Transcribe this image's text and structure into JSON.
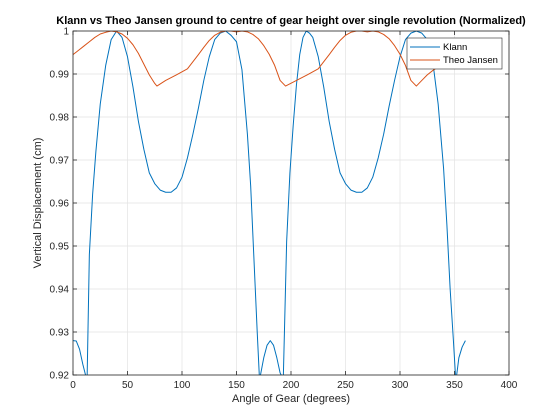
{
  "chart_data": {
    "type": "line",
    "title": "Klann vs Theo Jansen ground to centre of gear height over single revolution (Normalized)",
    "xlabel": "Angle of Gear (degrees)",
    "ylabel": "Vertical Displacement (cm)",
    "xlim": [
      0,
      400
    ],
    "ylim": [
      0.92,
      1.0
    ],
    "xticks": [
      0,
      50,
      100,
      150,
      200,
      250,
      300,
      350,
      400
    ],
    "yticks": [
      0.92,
      0.93,
      0.94,
      0.95,
      0.96,
      0.97,
      0.98,
      0.99,
      1.0
    ],
    "xtick_labels": [
      "0",
      "50",
      "100",
      "150",
      "200",
      "250",
      "300",
      "350",
      "400"
    ],
    "ytick_labels": [
      "0.92",
      "0.93",
      "0.94",
      "0.95",
      "0.96",
      "0.97",
      "0.98",
      "0.99",
      "1"
    ],
    "grid": true,
    "legend_position": "top-right",
    "series": [
      {
        "name": "Klann",
        "color": "#0072BD",
        "x": [
          0,
          3,
          6,
          9,
          12,
          13,
          15,
          18,
          21,
          25,
          30,
          35,
          40,
          45,
          50,
          55,
          60,
          65,
          70,
          75,
          80,
          85,
          90,
          95,
          100,
          105,
          110,
          115,
          120,
          125,
          130,
          135,
          140,
          145,
          150,
          155,
          160,
          163,
          166,
          169,
          171,
          172,
          175,
          178,
          181,
          184,
          187,
          190,
          192,
          193,
          196,
          199,
          202,
          205,
          208,
          211,
          214,
          217,
          220,
          225,
          230,
          235,
          240,
          245,
          250,
          255,
          260,
          265,
          270,
          275,
          280,
          285,
          290,
          295,
          300,
          305,
          310,
          315,
          320,
          325,
          330,
          335,
          340,
          343,
          346,
          349,
          351,
          352,
          354,
          357,
          360
        ],
        "y": [
          0.928,
          0.9279,
          0.926,
          0.9225,
          0.9195,
          0.92,
          0.948,
          0.962,
          0.972,
          0.983,
          0.992,
          0.998,
          1.0,
          0.9985,
          0.994,
          0.987,
          0.979,
          0.9725,
          0.967,
          0.9645,
          0.963,
          0.9625,
          0.9625,
          0.9635,
          0.966,
          0.9705,
          0.976,
          0.982,
          0.9885,
          0.994,
          0.998,
          0.9995,
          1.0,
          0.999,
          0.9975,
          0.991,
          0.976,
          0.964,
          0.947,
          0.93,
          0.9195,
          0.92,
          0.924,
          0.9269,
          0.928,
          0.9269,
          0.924,
          0.9205,
          0.9195,
          0.92,
          0.951,
          0.967,
          0.978,
          0.9875,
          0.9945,
          0.9985,
          1.0,
          0.9995,
          0.9985,
          0.994,
          0.987,
          0.979,
          0.9725,
          0.967,
          0.9645,
          0.963,
          0.9625,
          0.9625,
          0.9635,
          0.966,
          0.9705,
          0.976,
          0.9825,
          0.9885,
          0.994,
          0.998,
          0.9995,
          1.0,
          0.9995,
          0.998,
          0.993,
          0.983,
          0.968,
          0.955,
          0.94,
          0.928,
          0.9195,
          0.92,
          0.924,
          0.9265,
          0.928
        ]
      },
      {
        "name": "Theo Jansen",
        "color": "#D95319",
        "x": [
          0,
          5,
          10,
          15,
          20,
          25,
          30,
          35,
          40,
          45,
          50,
          55,
          60,
          65,
          70,
          75,
          77,
          85,
          95,
          105,
          115,
          120,
          125,
          130,
          135,
          140,
          145,
          150,
          155,
          160,
          165,
          170,
          175,
          180,
          185,
          190,
          195,
          205,
          215,
          225,
          235,
          240,
          245,
          250,
          255,
          260,
          265,
          270,
          275,
          280,
          285,
          290,
          295,
          300,
          305,
          310,
          315,
          320,
          325,
          330,
          340,
          350,
          355,
          360
        ],
        "y": [
          0.9945,
          0.9955,
          0.9965,
          0.9975,
          0.9985,
          0.9993,
          0.9997,
          1.0,
          0.9998,
          0.9993,
          0.9983,
          0.9968,
          0.9948,
          0.9923,
          0.9898,
          0.9878,
          0.9872,
          0.9885,
          0.9898,
          0.9912,
          0.9945,
          0.9962,
          0.9978,
          0.999,
          0.9997,
          1.0,
          1.0,
          0.9998,
          1.0,
          0.9998,
          0.9992,
          0.9982,
          0.9966,
          0.9946,
          0.992,
          0.9885,
          0.9872,
          0.9885,
          0.9898,
          0.9912,
          0.9945,
          0.9962,
          0.9978,
          0.999,
          0.9997,
          1.0,
          1.0,
          0.9998,
          1.0,
          0.9998,
          0.9992,
          0.9982,
          0.9966,
          0.9946,
          0.992,
          0.9885,
          0.9872,
          0.9885,
          0.9898,
          0.9908,
          0.9925,
          0.9942,
          0.995,
          0.9955
        ]
      }
    ]
  }
}
